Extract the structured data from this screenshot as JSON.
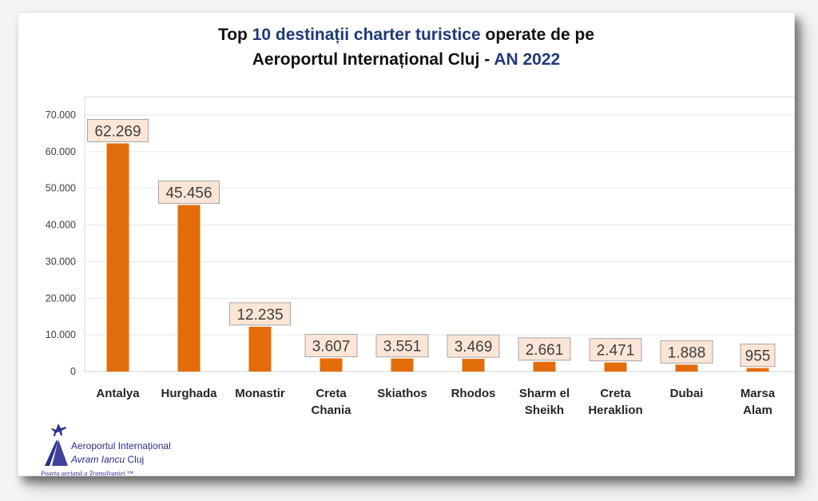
{
  "title": {
    "line1_prefix": "Top ",
    "line1_highlight": "10 destinații charter turistice",
    "line1_suffix": " operate de pe",
    "line2_prefix": "Aeroportul Internațional Cluj - ",
    "line2_highlight": "AN 2022"
  },
  "colors": {
    "bar": "#e36c0a",
    "label_bg": "#fbe5d6",
    "label_border": "#a6a6a6",
    "title_highlight": "#1f3a78",
    "gridline": "#e7e7e7"
  },
  "chart_data": {
    "type": "bar",
    "title": "Top 10 destinații charter turistice operate de pe Aeroportul Internațional Cluj - AN 2022",
    "xlabel": "",
    "ylabel": "",
    "categories": [
      [
        "Antalya"
      ],
      [
        "Hurghada"
      ],
      [
        "Monastir"
      ],
      [
        "Creta",
        "Chania"
      ],
      [
        "Skiathos"
      ],
      [
        "Rhodos"
      ],
      [
        "Sharm el",
        "Sheikh"
      ],
      [
        "Creta",
        "Heraklion"
      ],
      [
        "Dubai"
      ],
      [
        "Marsa",
        "Alam"
      ]
    ],
    "values": [
      62269,
      45456,
      12235,
      3607,
      3551,
      3469,
      2661,
      2471,
      1888,
      955
    ],
    "data_labels": [
      "62.269",
      "45.456",
      "12.235",
      "3.607",
      "3.551",
      "3.469",
      "2.661",
      "2.471",
      "1.888",
      "955"
    ],
    "ylim": [
      0,
      70000
    ],
    "yticks": [
      0,
      10000,
      20000,
      30000,
      40000,
      50000,
      60000,
      70000
    ],
    "ytick_labels": [
      "0",
      "10.000",
      "20.000",
      "30.000",
      "40.000",
      "50.000",
      "60.000",
      "70.000"
    ],
    "grid": true,
    "legend": "none"
  },
  "logo": {
    "line1": "Aeroportul Internațional",
    "line2_italic": "Avram Iancu",
    "line2_rest": " Cluj",
    "tagline": "Poarta aeriană a Transilvaniei ™"
  }
}
